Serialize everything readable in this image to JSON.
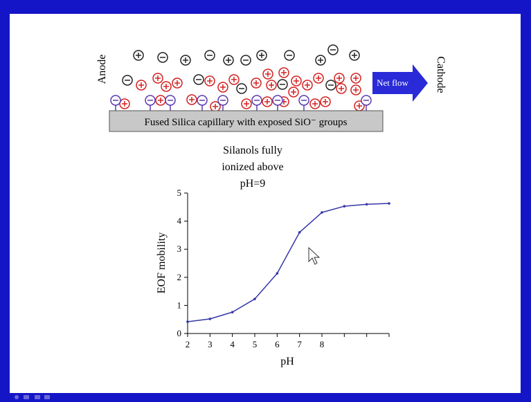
{
  "diagram": {
    "anode": "Anode",
    "cathode": "Cathode",
    "net_flow": "Net flow",
    "capillary": "Fused Silica capillary with exposed SiO⁻ groups"
  },
  "chart_data": {
    "type": "line",
    "title_lines": [
      "Silanols fully",
      "ionized above",
      "pH=9"
    ],
    "x_label": "pH",
    "y_label": "EOF mobility",
    "x": [
      2,
      3,
      4,
      5,
      6,
      7,
      8,
      9,
      10,
      11
    ],
    "series": [
      {
        "name": "EOF mobility",
        "color": "#3535a8",
        "values": [
          0.42,
          0.52,
          0.76,
          1.23,
          2.14,
          3.6,
          4.31,
          4.53,
          4.6,
          4.63
        ]
      }
    ],
    "xlim": [
      2,
      11
    ],
    "ylim": [
      0,
      5
    ],
    "xticks": [
      2,
      3,
      4,
      5,
      6,
      7,
      8,
      {
        "value": 9,
        "label": null
      },
      {
        "value": 10,
        "label": null
      },
      {
        "value": 11,
        "label": null
      }
    ],
    "yticks": [
      0,
      1,
      2,
      3,
      4,
      5
    ],
    "grid": false
  }
}
